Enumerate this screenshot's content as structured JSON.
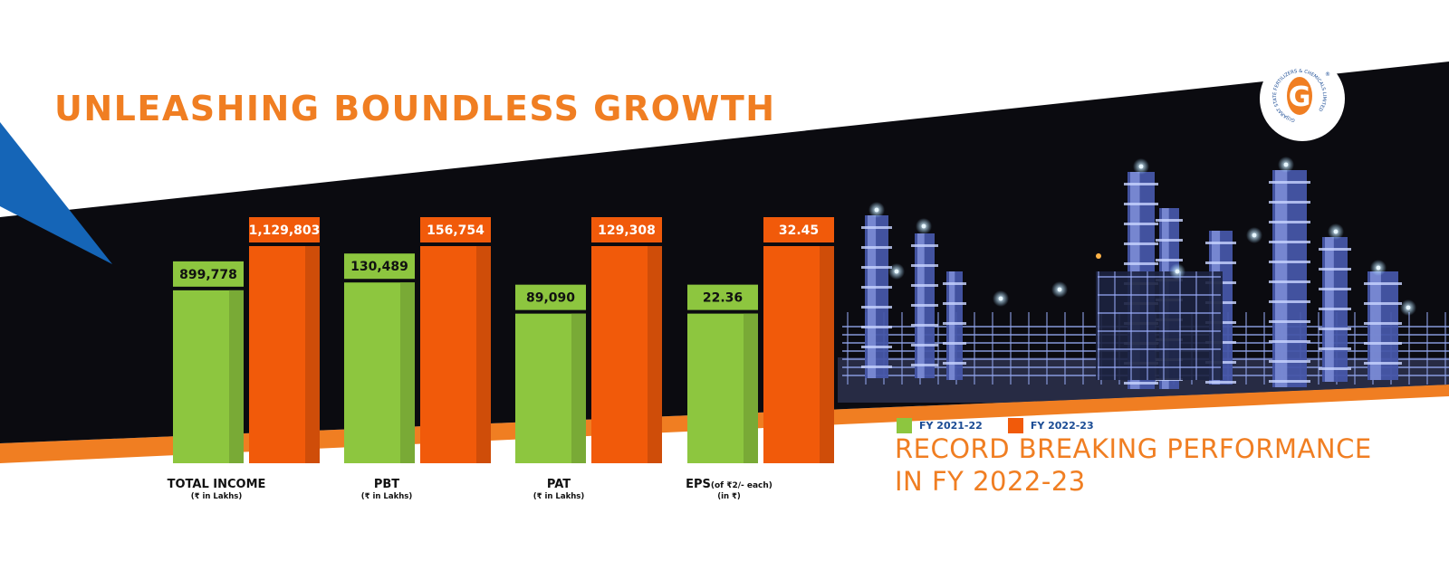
{
  "headline": "UNLEASHING BOUNDLESS GROWTH",
  "tagline": [
    "RECORD BREAKING PERFORMANCE",
    "IN FY 2022-23"
  ],
  "colors": {
    "accent": "#f07e22",
    "green": "#8dc63f",
    "orange": "#f15a0a",
    "blue": "#1565b7",
    "night": "#0b0b10"
  },
  "logo": {
    "letter": "G",
    "ring_text": "GUJARAT STATE FERTILIZERS & CHEMICALS LIMITED",
    "mark": "®"
  },
  "chart_data": {
    "type": "bar",
    "categories": [
      {
        "label": "TOTAL INCOME",
        "suffix": "",
        "sub": "(₹ in Lakhs)"
      },
      {
        "label": "PBT",
        "suffix": "",
        "sub": "(₹ in Lakhs)"
      },
      {
        "label": "PAT",
        "suffix": "",
        "sub": "(₹ in Lakhs)"
      },
      {
        "label": "EPS",
        "suffix": "(of ₹2/- each)",
        "sub": "(in ₹)"
      }
    ],
    "series": [
      {
        "name": "FY 2021-22",
        "color": "#8dc63f",
        "values": [
          899778,
          130489,
          89090,
          22.36
        ],
        "labels": [
          "899,778",
          "130,489",
          "89,090",
          "22.36"
        ]
      },
      {
        "name": "FY 2022-23",
        "color": "#f15a0a",
        "values": [
          1129803,
          156754,
          129308,
          32.45
        ],
        "labels": [
          "1,129,803",
          "156,754",
          "129,308",
          "32.45"
        ]
      }
    ],
    "legend": "bottom-right"
  }
}
